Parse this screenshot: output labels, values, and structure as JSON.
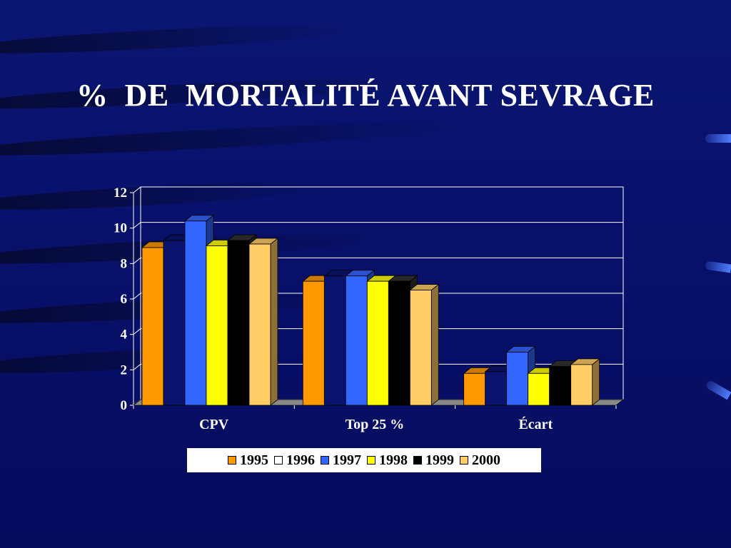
{
  "slide": {
    "title": "%  DE  MORTALITÉ AVANT SEVRAGE"
  },
  "chart_data": {
    "type": "bar",
    "title": "%  DE  MORTALITÉ AVANT SEVRAGE",
    "categories": [
      "CPV",
      "Top 25 %",
      "Écart"
    ],
    "series": [
      {
        "name": "1995",
        "values": [
          8.9,
          7.0,
          1.8
        ],
        "color": "#ff9900"
      },
      {
        "name": "1996",
        "values": [
          9.3,
          7.3,
          1.9
        ],
        "color": "#0a146e"
      },
      {
        "name": "1997",
        "values": [
          10.4,
          7.3,
          3.0
        ],
        "color": "#3366ff"
      },
      {
        "name": "1998",
        "values": [
          9.0,
          7.0,
          1.8
        ],
        "color": "#ffff00"
      },
      {
        "name": "1999",
        "values": [
          9.3,
          7.0,
          2.2
        ],
        "color": "#000000"
      },
      {
        "name": "2000",
        "values": [
          9.1,
          6.5,
          2.3
        ],
        "color": "#ffcc66"
      }
    ],
    "ylim": [
      0,
      12
    ],
    "yticks": [
      "0",
      "2",
      "4",
      "6",
      "8",
      "10",
      "12"
    ],
    "grid": true,
    "legend": "bottom",
    "xlabel": "",
    "ylabel": ""
  }
}
